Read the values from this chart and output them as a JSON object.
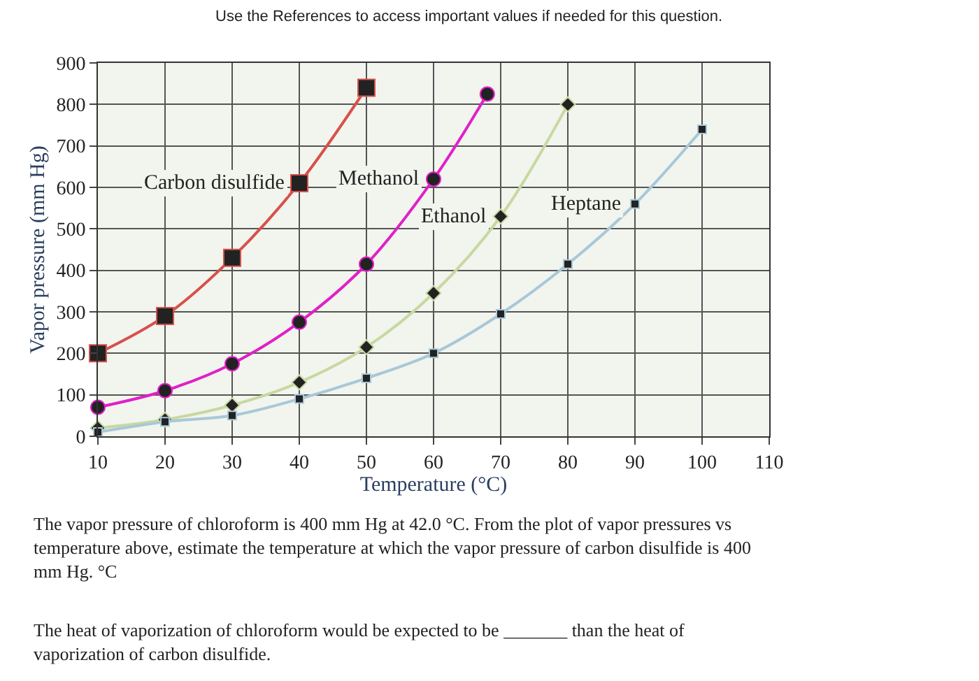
{
  "chart_data": {
    "type": "line",
    "title": "Use the References to access important values if needed for this question.",
    "xlabel": "Temperature (°C)",
    "ylabel": "Vapor pressure (mm Hg)",
    "xlim": [
      10,
      110
    ],
    "xticks": [
      10,
      20,
      30,
      40,
      50,
      60,
      70,
      80,
      90,
      100,
      110
    ],
    "ylim": [
      0,
      900
    ],
    "yticks": [
      0,
      100,
      200,
      300,
      400,
      500,
      600,
      700,
      800,
      900
    ],
    "grid": true,
    "legend": false,
    "line_style": "solid",
    "series": [
      {
        "name": "Carbon disulfide",
        "color": "#d8504a",
        "marker": "square",
        "x": [
          10,
          20,
          30,
          40,
          50
        ],
        "values": [
          200,
          290,
          430,
          610,
          840
        ]
      },
      {
        "name": "Methanol",
        "color": "#e020c8",
        "marker": "circle",
        "x": [
          10,
          20,
          30,
          40,
          50,
          60,
          68
        ],
        "values": [
          70,
          110,
          175,
          275,
          415,
          620,
          825
        ]
      },
      {
        "name": "Ethanol",
        "color": "#c8d8a0",
        "marker": "diamond",
        "x": [
          10,
          20,
          30,
          40,
          50,
          60,
          70,
          80
        ],
        "values": [
          20,
          40,
          75,
          130,
          215,
          345,
          530,
          800
        ]
      },
      {
        "name": "Heptane",
        "color": "#a8c8d8",
        "marker": "square",
        "x": [
          10,
          20,
          30,
          40,
          50,
          60,
          70,
          80,
          90,
          100
        ],
        "values": [
          10,
          35,
          50,
          90,
          140,
          200,
          295,
          415,
          560,
          740
        ]
      }
    ],
    "annotations": [
      "The vapor pressure of chloroform is 400 mm Hg at 42.0 °C. From the plot of vapor pressures vs temperature above, estimate the temperature at which the vapor pressure of carbon disulfide is 400 mm Hg. °C",
      "The heat of vaporization of chloroform would be expected to be _______ than the heat of vaporization of carbon disulfide."
    ]
  }
}
